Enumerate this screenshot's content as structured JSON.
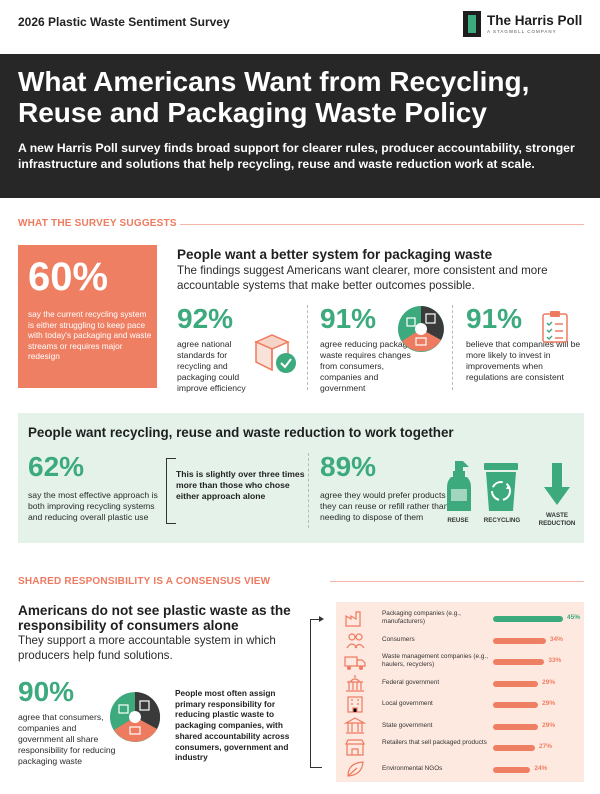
{
  "header": {
    "survey_label": "2026 Plastic Waste Sentiment Survey",
    "brand": "The Harris Poll",
    "brand_sub": "A STAGWELL COMPANY"
  },
  "hero": {
    "title": "What Americans Want from Recycling, Reuse and Packaging Waste Policy",
    "subtitle": "A new Harris Poll survey finds broad support for clearer rules, producer accountability, stronger infrastructure and solutions that help recycling, reuse and waste reduction work at scale."
  },
  "section1": {
    "title": "WHAT THE SURVEY SUGGESTS",
    "highlight": {
      "value": "60%",
      "text": "say the current recycling system is either struggling to keep pace with today's packaging and waste streams or requires major redesign"
    },
    "heading": "People want a better system for packaging waste",
    "subheading": "The findings suggest Americans want clearer, more consistent and more accountable systems that make better outcomes possible.",
    "stats": [
      {
        "value": "92%",
        "text": "agree national standards for recycling and packaging could improve efficiency",
        "icon": "box-check-icon"
      },
      {
        "value": "91%",
        "text": "agree reducing packaging waste requires changes from consumers, companies and government",
        "icon": "stakeholders-icon"
      },
      {
        "value": "91%",
        "text": "believe that companies will be more likely to invest in improvements when regulations are consistent",
        "icon": "clipboard-checklist-icon"
      }
    ]
  },
  "section2": {
    "title": "People want recycling, reuse and waste reduction to work together",
    "stat_a": {
      "value": "62%",
      "text": "say the most effective approach is both improving recycling systems and reducing overall plastic use"
    },
    "note": "This is slightly over three times more than those who chose either approach alone",
    "stat_b": {
      "value": "89%",
      "text": "agree they would prefer products they can reuse or refill rather than needing to dispose of them"
    },
    "icons": [
      {
        "label": "REUSE",
        "icon": "spray-bottle-icon"
      },
      {
        "label": "RECYCLING",
        "icon": "recycling-bin-icon"
      },
      {
        "label": "WASTE REDUCTION",
        "icon": "down-arrow-icon"
      }
    ]
  },
  "section3": {
    "title": "SHARED RESPONSIBILITY IS A CONSENSUS VIEW",
    "heading": "Americans do not see plastic waste as the responsibility of consumers alone",
    "subheading": "They support a more accountable system in which producers help fund solutions.",
    "stat": {
      "value": "90%",
      "text": "agree that consumers, companies and government all share responsibility for reducing packaging waste"
    },
    "note": "People most often assign primary responsibility for reducing plastic waste to packaging companies, with shared accountability across consumers, government and industry",
    "colors": {
      "leader": "#3daa7e",
      "others": "#ef7f63"
    }
  },
  "chart_data": {
    "type": "bar",
    "orientation": "horizontal",
    "categories": [
      "Packaging companies (e.g., manufacturers)",
      "Consumers",
      "Waste management companies (e.g., haulers, recyclers)",
      "Federal government",
      "Local government",
      "State government",
      "Retailers that sell packaged products",
      "Environmental NGOs"
    ],
    "values": [
      45,
      34,
      33,
      29,
      29,
      29,
      27,
      24
    ],
    "value_labels": [
      "45%",
      "34%",
      "33%",
      "29%",
      "29%",
      "29%",
      "27%",
      "24%"
    ],
    "icons": [
      "factory-icon",
      "people-icon",
      "truck-icon",
      "capitol-icon",
      "building-icon",
      "columns-icon",
      "storefront-icon",
      "leaf-icon"
    ],
    "xlim": [
      0,
      45
    ],
    "grid": false,
    "legend": "none"
  }
}
